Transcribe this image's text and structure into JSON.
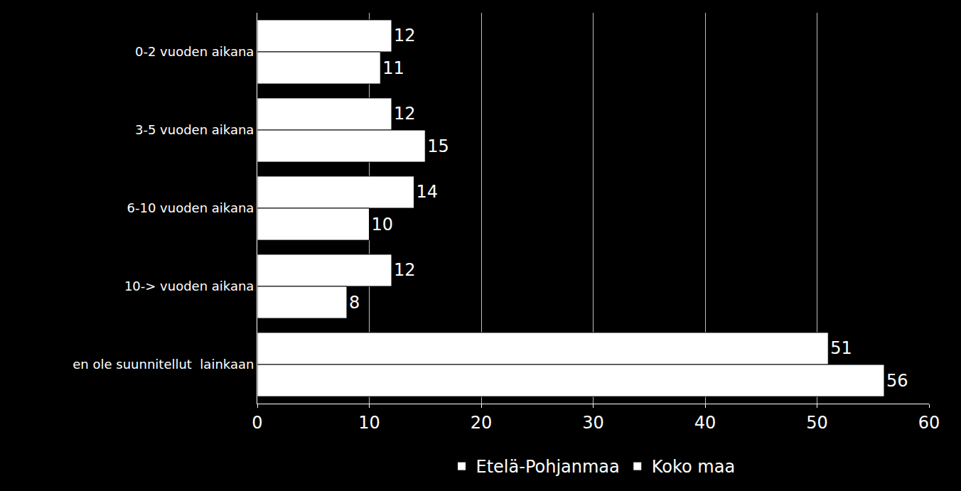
{
  "chart_data": {
    "type": "bar",
    "orientation": "horizontal",
    "categories": [
      "0-2 vuoden aikana",
      "3-5 vuoden aikana",
      "6-10 vuoden aikana",
      "10-> vuoden aikana",
      "en ole suunnitellut  lainkaan"
    ],
    "series": [
      {
        "name": "Etelä-Pohjanmaa",
        "color": "#ffffff",
        "values": [
          12,
          12,
          14,
          12,
          51
        ]
      },
      {
        "name": "Koko maa",
        "color": "#ffffff",
        "values": [
          11,
          15,
          10,
          8,
          56
        ]
      }
    ],
    "xlim": [
      0,
      60
    ],
    "xticks": [
      0,
      10,
      20,
      30,
      40,
      50,
      60
    ],
    "grid": true,
    "data_labels": true,
    "legend": "bottom"
  }
}
